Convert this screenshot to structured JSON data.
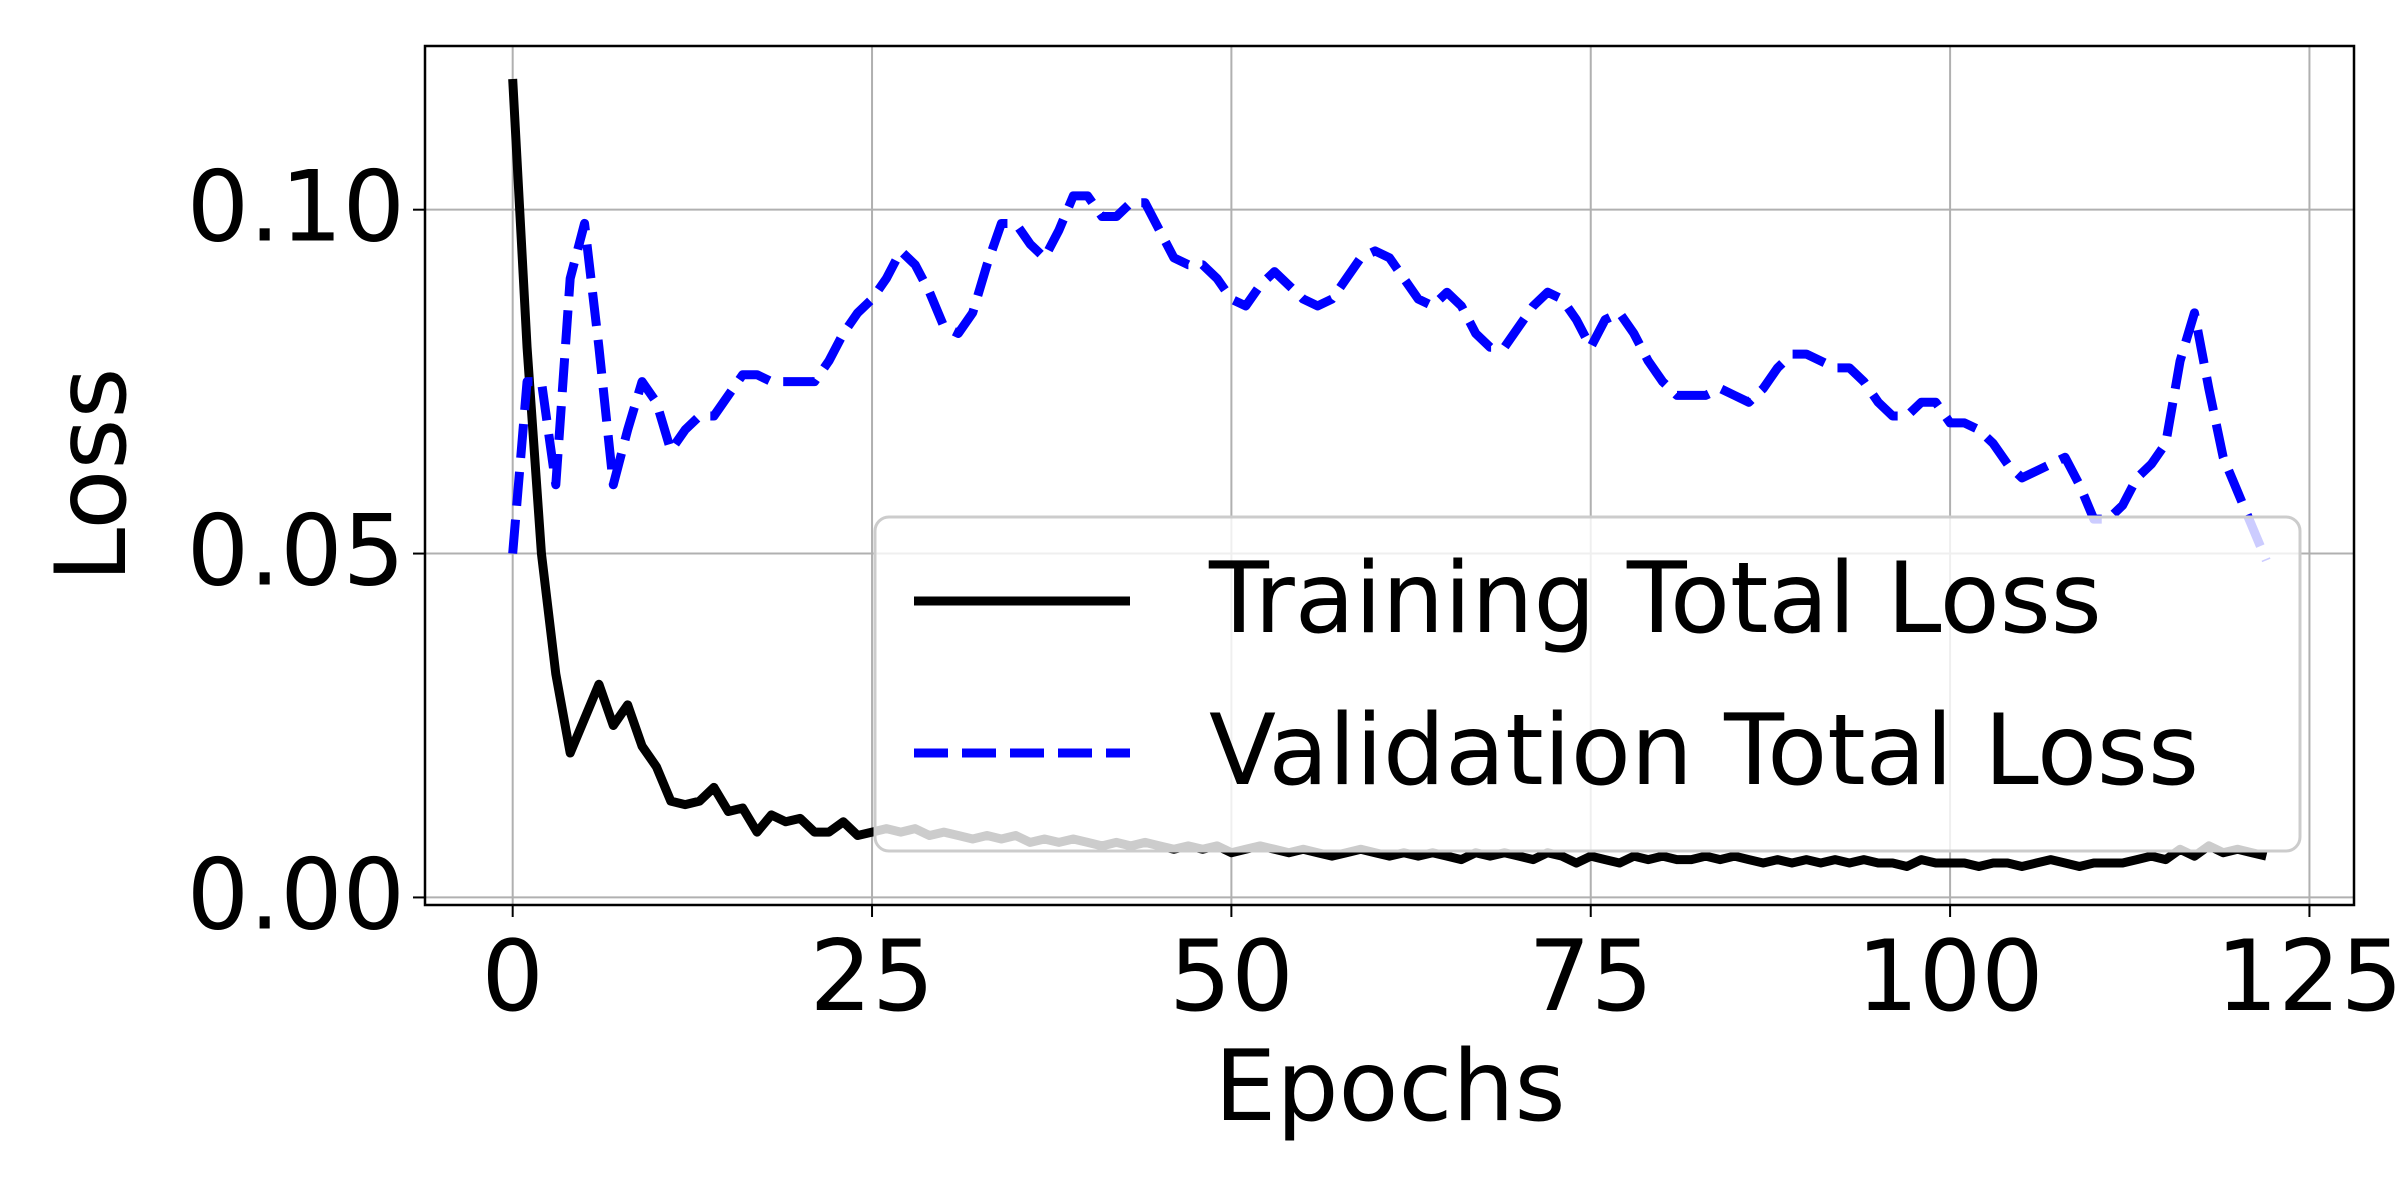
{
  "chart_data": {
    "type": "line",
    "xlabel": "Epochs",
    "ylabel": "Loss",
    "x": [
      0,
      1,
      2,
      3,
      4,
      5,
      6,
      7,
      8,
      9,
      10,
      11,
      12,
      13,
      14,
      15,
      16,
      17,
      18,
      19,
      20,
      21,
      22,
      23,
      24,
      25,
      26,
      27,
      28,
      29,
      30,
      31,
      32,
      33,
      34,
      35,
      36,
      37,
      38,
      39,
      40,
      41,
      42,
      43,
      44,
      45,
      46,
      47,
      48,
      49,
      50,
      51,
      52,
      53,
      54,
      55,
      56,
      57,
      58,
      59,
      60,
      61,
      62,
      63,
      64,
      65,
      66,
      67,
      68,
      69,
      70,
      71,
      72,
      73,
      74,
      75,
      76,
      77,
      78,
      79,
      80,
      81,
      82,
      83,
      84,
      85,
      86,
      87,
      88,
      89,
      90,
      91,
      92,
      93,
      94,
      95,
      96,
      97,
      98,
      99,
      100,
      101,
      102,
      103,
      104,
      105,
      106,
      107,
      108,
      109,
      110,
      111,
      112,
      113,
      114,
      115,
      116,
      117,
      118,
      119,
      120,
      121,
      122
    ],
    "series": [
      {
        "name": "Training Total Loss",
        "color": "#000000",
        "style": "solid",
        "values": [
          0.119,
          0.08,
          0.05,
          0.0325,
          0.021,
          0.026,
          0.031,
          0.025,
          0.028,
          0.022,
          0.019,
          0.014,
          0.0135,
          0.014,
          0.016,
          0.0125,
          0.013,
          0.0095,
          0.012,
          0.011,
          0.0115,
          0.0095,
          0.0095,
          0.011,
          0.009,
          0.0095,
          0.01,
          0.0095,
          0.01,
          0.009,
          0.0095,
          0.009,
          0.0085,
          0.009,
          0.0085,
          0.009,
          0.008,
          0.0085,
          0.008,
          0.0085,
          0.008,
          0.0075,
          0.008,
          0.0075,
          0.008,
          0.0075,
          0.007,
          0.0075,
          0.007,
          0.0075,
          0.0065,
          0.007,
          0.0075,
          0.007,
          0.0065,
          0.007,
          0.0065,
          0.006,
          0.0065,
          0.007,
          0.0065,
          0.006,
          0.0065,
          0.006,
          0.0065,
          0.006,
          0.0055,
          0.0065,
          0.006,
          0.0065,
          0.006,
          0.0055,
          0.0065,
          0.006,
          0.005,
          0.006,
          0.0055,
          0.005,
          0.006,
          0.0055,
          0.006,
          0.0055,
          0.0055,
          0.006,
          0.0055,
          0.006,
          0.0055,
          0.005,
          0.0055,
          0.005,
          0.0055,
          0.005,
          0.0055,
          0.005,
          0.0055,
          0.005,
          0.005,
          0.0045,
          0.0055,
          0.005,
          0.005,
          0.005,
          0.0045,
          0.005,
          0.005,
          0.0045,
          0.005,
          0.0055,
          0.005,
          0.0045,
          0.005,
          0.005,
          0.005,
          0.0055,
          0.006,
          0.0055,
          0.007,
          0.006,
          0.0075,
          0.0065,
          0.007,
          0.0065,
          0.006
        ]
      },
      {
        "name": "Validation Total Loss",
        "color": "#0000ff",
        "style": "dashed",
        "values": [
          0.05,
          0.075,
          0.075,
          0.06,
          0.09,
          0.098,
          0.08,
          0.06,
          0.068,
          0.075,
          0.072,
          0.065,
          0.068,
          0.07,
          0.07,
          0.073,
          0.076,
          0.076,
          0.075,
          0.075,
          0.075,
          0.075,
          0.078,
          0.082,
          0.085,
          0.087,
          0.09,
          0.094,
          0.092,
          0.088,
          0.083,
          0.082,
          0.085,
          0.092,
          0.098,
          0.098,
          0.095,
          0.093,
          0.097,
          0.102,
          0.102,
          0.099,
          0.099,
          0.101,
          0.101,
          0.097,
          0.093,
          0.092,
          0.092,
          0.09,
          0.087,
          0.086,
          0.089,
          0.091,
          0.089,
          0.087,
          0.086,
          0.087,
          0.09,
          0.093,
          0.094,
          0.093,
          0.09,
          0.087,
          0.086,
          0.088,
          0.086,
          0.082,
          0.08,
          0.08,
          0.083,
          0.086,
          0.088,
          0.087,
          0.084,
          0.08,
          0.084,
          0.085,
          0.082,
          0.078,
          0.075,
          0.073,
          0.073,
          0.073,
          0.074,
          0.073,
          0.072,
          0.074,
          0.077,
          0.079,
          0.079,
          0.078,
          0.077,
          0.077,
          0.075,
          0.072,
          0.07,
          0.07,
          0.072,
          0.072,
          0.069,
          0.069,
          0.068,
          0.066,
          0.063,
          0.061,
          0.062,
          0.063,
          0.064,
          0.06,
          0.055,
          0.055,
          0.057,
          0.061,
          0.063,
          0.066,
          0.078,
          0.085,
          0.074,
          0.064,
          0.059,
          0.054,
          0.049
        ]
      }
    ],
    "xlim": [
      -6.1,
      128.1
    ],
    "ylim": [
      -0.0011,
      0.1238
    ],
    "xticks": [
      0,
      25,
      50,
      75,
      100,
      125
    ],
    "yticks": [
      {
        "value": 0,
        "label": "0.00"
      },
      {
        "value": 0.05,
        "label": "0.05"
      },
      {
        "value": 0.1,
        "label": "0.10"
      }
    ],
    "grid": true,
    "legend": "lower right"
  }
}
